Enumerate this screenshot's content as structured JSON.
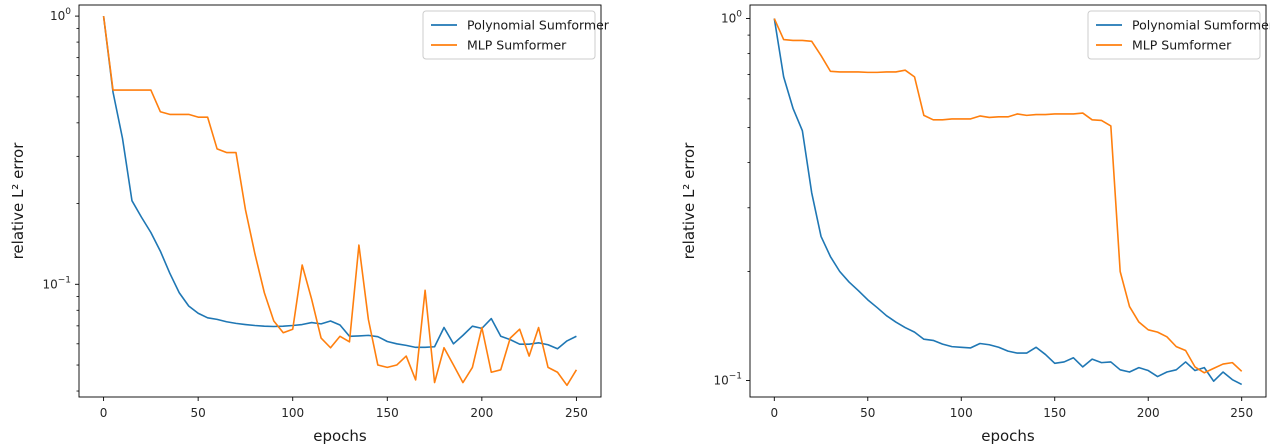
{
  "colors": {
    "polynomial": "#1f77b4",
    "mlp": "#ff7f0e",
    "axis": "#000000",
    "background": "#ffffff"
  },
  "chart_data": [
    {
      "type": "line",
      "yscale": "log",
      "xlabel": "epochs",
      "ylabel": "relative L² error",
      "xlim": [
        -13,
        263
      ],
      "ylim": [
        0.038,
        1.1
      ],
      "xticks": [
        0,
        50,
        100,
        150,
        200,
        250
      ],
      "yticks": [
        {
          "value": 1,
          "base": "10",
          "exp": "0"
        },
        {
          "value": 0.1,
          "base": "10",
          "exp": "−1"
        }
      ],
      "legend": "top-right",
      "grid": false,
      "x": [
        0,
        5,
        10,
        15,
        20,
        25,
        30,
        35,
        40,
        45,
        50,
        55,
        60,
        65,
        70,
        75,
        80,
        85,
        90,
        95,
        100,
        105,
        110,
        115,
        120,
        125,
        130,
        135,
        140,
        145,
        150,
        155,
        160,
        165,
        170,
        175,
        180,
        185,
        190,
        195,
        200,
        205,
        210,
        215,
        220,
        225,
        230,
        235,
        240,
        245,
        250
      ],
      "series": [
        {
          "name": "Polynomial Sumformer",
          "color": "#1f77b4",
          "values": [
            1.0,
            0.52,
            0.35,
            0.205,
            0.178,
            0.156,
            0.133,
            0.11,
            0.093,
            0.083,
            0.078,
            0.075,
            0.074,
            0.0725,
            0.0715,
            0.0708,
            0.0702,
            0.0698,
            0.0696,
            0.0698,
            0.0702,
            0.0708,
            0.072,
            0.0712,
            0.073,
            0.0705,
            0.064,
            0.0642,
            0.0645,
            0.0638,
            0.0612,
            0.06,
            0.0592,
            0.0582,
            0.0582,
            0.0585,
            0.069,
            0.06,
            0.0645,
            0.0698,
            0.0685,
            0.0745,
            0.064,
            0.0622,
            0.0598,
            0.0598,
            0.0605,
            0.0595,
            0.0575,
            0.0615,
            0.064
          ]
        },
        {
          "name": "MLP Sumformer",
          "color": "#ff7f0e",
          "values": [
            1.0,
            0.53,
            0.53,
            0.53,
            0.53,
            0.53,
            0.44,
            0.43,
            0.43,
            0.43,
            0.42,
            0.42,
            0.32,
            0.31,
            0.31,
            0.19,
            0.13,
            0.093,
            0.073,
            0.066,
            0.068,
            0.118,
            0.088,
            0.063,
            0.058,
            0.064,
            0.061,
            0.14,
            0.074,
            0.05,
            0.049,
            0.05,
            0.054,
            0.044,
            0.095,
            0.043,
            0.058,
            0.05,
            0.043,
            0.049,
            0.069,
            0.047,
            0.048,
            0.063,
            0.068,
            0.054,
            0.069,
            0.049,
            0.047,
            0.042,
            0.048
          ]
        }
      ]
    },
    {
      "type": "line",
      "yscale": "log",
      "xlabel": "epochs",
      "ylabel": "relative L² error",
      "xlim": [
        -13,
        263
      ],
      "ylim": [
        0.09,
        1.09
      ],
      "xticks": [
        0,
        50,
        100,
        150,
        200,
        250
      ],
      "yticks": [
        {
          "value": 1,
          "base": "10",
          "exp": "0"
        },
        {
          "value": 0.1,
          "base": "10",
          "exp": "−1"
        }
      ],
      "legend": "top-right",
      "grid": false,
      "x": [
        0,
        5,
        10,
        15,
        20,
        25,
        30,
        35,
        40,
        45,
        50,
        55,
        60,
        65,
        70,
        75,
        80,
        85,
        90,
        95,
        100,
        105,
        110,
        115,
        120,
        125,
        130,
        135,
        140,
        145,
        150,
        155,
        160,
        165,
        170,
        175,
        180,
        185,
        190,
        195,
        200,
        205,
        210,
        215,
        220,
        225,
        230,
        235,
        240,
        245,
        250
      ],
      "series": [
        {
          "name": "Polynomial Sumformer",
          "color": "#1f77b4",
          "values": [
            1.0,
            0.69,
            0.565,
            0.49,
            0.33,
            0.25,
            0.22,
            0.2,
            0.187,
            0.177,
            0.167,
            0.159,
            0.151,
            0.145,
            0.14,
            0.136,
            0.13,
            0.129,
            0.126,
            0.124,
            0.1235,
            0.123,
            0.1265,
            0.1255,
            0.1235,
            0.1205,
            0.119,
            0.119,
            0.1235,
            0.118,
            0.1115,
            0.1125,
            0.1155,
            0.109,
            0.1145,
            0.112,
            0.1125,
            0.107,
            0.1055,
            0.1085,
            0.1065,
            0.1025,
            0.1055,
            0.107,
            0.1125,
            0.1065,
            0.1085,
            0.0995,
            0.1055,
            0.1005,
            0.0975
          ]
        },
        {
          "name": "MLP Sumformer",
          "color": "#ff7f0e",
          "values": [
            1.0,
            0.875,
            0.87,
            0.87,
            0.865,
            0.79,
            0.715,
            0.712,
            0.712,
            0.712,
            0.71,
            0.71,
            0.712,
            0.712,
            0.72,
            0.69,
            0.54,
            0.525,
            0.525,
            0.528,
            0.528,
            0.528,
            0.538,
            0.533,
            0.535,
            0.535,
            0.545,
            0.54,
            0.543,
            0.543,
            0.545,
            0.545,
            0.545,
            0.548,
            0.525,
            0.523,
            0.505,
            0.2,
            0.16,
            0.145,
            0.138,
            0.136,
            0.132,
            0.124,
            0.121,
            0.109,
            0.105,
            0.108,
            0.111,
            0.112,
            0.106
          ]
        }
      ]
    }
  ]
}
